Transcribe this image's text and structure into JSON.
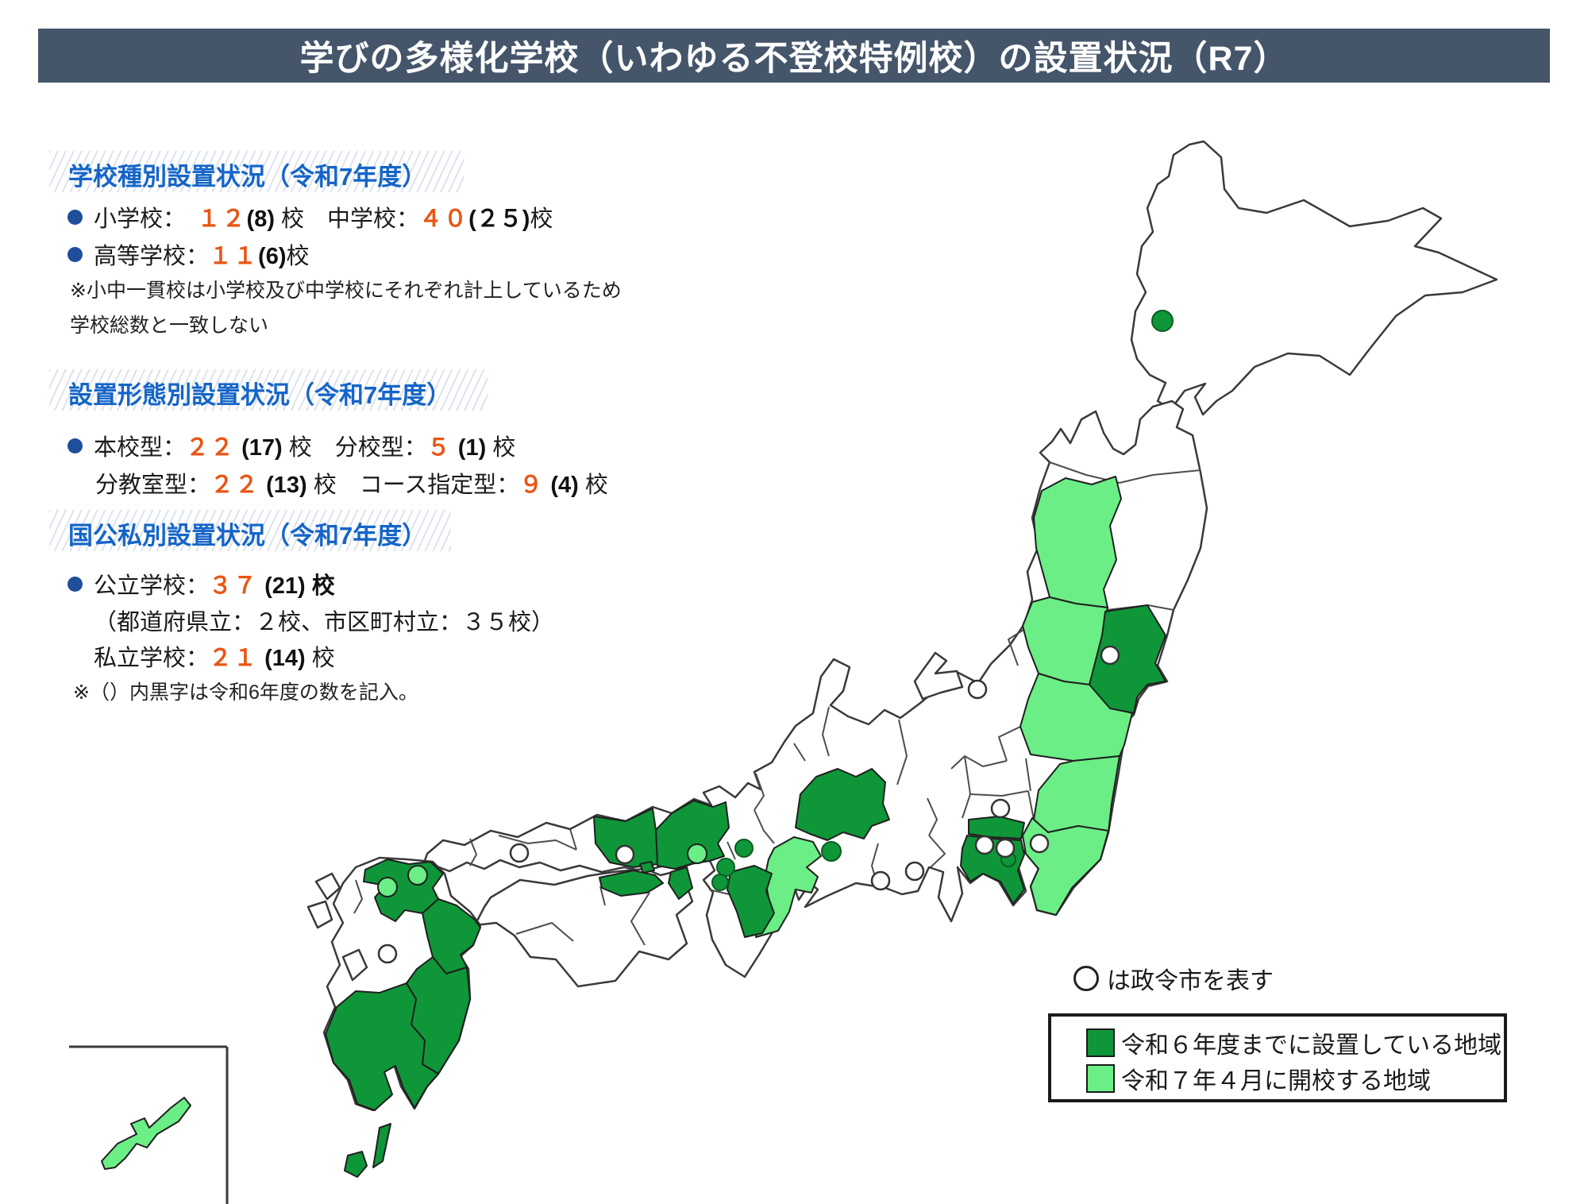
{
  "title": "学びの多様化学校（いわゆる不登校特例校）の設置状況（R7）",
  "sections": [
    {
      "heading": "学校種別設置状況（令和7年度）",
      "bullets": [
        {
          "segments": [
            {
              "t": "小学校：　",
              "s": "p"
            },
            {
              "t": "１２",
              "s": "n"
            },
            {
              "t": "(8)",
              "s": "b"
            },
            {
              "t": " 校　中学校：",
              "s": "p"
            },
            {
              "t": "４０",
              "s": "n"
            },
            {
              "t": "(２５)",
              "s": "b"
            },
            {
              "t": "校",
              "s": "p"
            }
          ]
        },
        {
          "segments": [
            {
              "t": "高等学校：",
              "s": "p"
            },
            {
              "t": "１１",
              "s": "n"
            },
            {
              "t": "(6)",
              "s": "b"
            },
            {
              "t": "校",
              "s": "p"
            }
          ]
        }
      ],
      "notes": [
        "※小中一貫校は小学校及び中学校にそれぞれ計上しているため",
        "学校総数と一致しない"
      ]
    },
    {
      "heading": "設置形態別設置状況（令和7年度）",
      "bullets": [
        {
          "segments": [
            {
              "t": "本校型：",
              "s": "p"
            },
            {
              "t": "２２",
              "s": "n"
            },
            {
              "t": " (17) ",
              "s": "b"
            },
            {
              "t": "校　分校型：",
              "s": "p"
            },
            {
              "t": "５",
              "s": "n"
            },
            {
              "t": " (1) ",
              "s": "b"
            },
            {
              "t": "校",
              "s": "p"
            }
          ]
        },
        {
          "segments": [
            {
              "t": "分教室型：",
              "s": "p"
            },
            {
              "t": "２２",
              "s": "n"
            },
            {
              "t": " (13) ",
              "s": "b"
            },
            {
              "t": "校　コース指定型：",
              "s": "p"
            },
            {
              "t": "９",
              "s": "n"
            },
            {
              "t": " (4) ",
              "s": "b"
            },
            {
              "t": "校",
              "s": "p"
            }
          ]
        }
      ],
      "notes": []
    },
    {
      "heading": "国公私別設置状況（令和7年度）",
      "bullets": [
        {
          "segments": [
            {
              "t": "公立学校：",
              "s": "p"
            },
            {
              "t": "３７",
              "s": "n"
            },
            {
              "t": " (21) ",
              "s": "b"
            },
            {
              "t": "校",
              "s": "b"
            }
          ]
        },
        {
          "segments": [
            {
              "t": "（都道府県立：２校、市区町村立：３５校）",
              "s": "p"
            }
          ]
        },
        {
          "segments": [
            {
              "t": "私立学校：",
              "s": "p"
            },
            {
              "t": "２１",
              "s": "n"
            },
            {
              "t": " (14) ",
              "s": "b"
            },
            {
              "t": "校",
              "s": "p"
            }
          ]
        }
      ],
      "notes": [
        "※（）内黒字は令和6年度の数を記入。"
      ]
    }
  ],
  "map": {
    "note_marker": "○",
    "note_text": "は政令市を表す",
    "legend": [
      {
        "label": "令和６年度までに設置している地域",
        "key": "dark"
      },
      {
        "label": "令和７年４月に開校する地域",
        "key": "light"
      }
    ],
    "marker_counts": {
      "dark_dots": 6,
      "white_circles": 11,
      "light_circles": 3
    }
  },
  "colors": {
    "green_dark": "#0F9639",
    "green_light": "#6BEE86",
    "accent_number": "#EA5514",
    "heading_blue": "#1565C8",
    "bullet_blue": "#1F4E9B",
    "titlebar_bg": "#45566B",
    "titlebar_text": "#FFFFFF"
  }
}
